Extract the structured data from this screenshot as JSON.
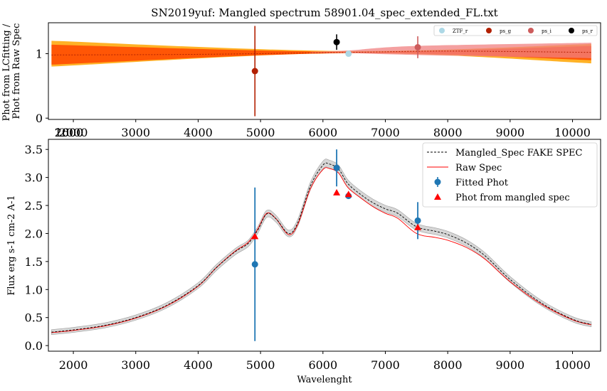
{
  "chart_data": [
    {
      "type": "line",
      "title": "SN2019yuf: Mangled spectrum 58901.04_spec_extended_FL.txt",
      "ylabel": "Phot from LCfitting /\nPhot from Raw Spec",
      "xlabel": "",
      "xlim": [
        1600,
        10450
      ],
      "ylim": [
        -0.02,
        1.48
      ],
      "xticks": [
        2000,
        3000,
        4000,
        5000,
        6000,
        7000,
        8000,
        9000,
        10000
      ],
      "xtick_labels": [
        "2000",
        "3000",
        "4000",
        "5000",
        "6000",
        "7000",
        "8000",
        "9000",
        "10000"
      ],
      "overlap_tick_labels": [
        "1600",
        "2000"
      ],
      "yticks": [
        0,
        1
      ],
      "ytick_labels": [
        "0",
        "1"
      ],
      "grid": false,
      "legend_placement": "top-right",
      "legend": [
        {
          "name": "ZTF_r",
          "color": "#add8e6"
        },
        {
          "name": "ps_g",
          "color": "#b22000"
        },
        {
          "name": "ps_i",
          "color": "#cd5c5c"
        },
        {
          "name": "ps_r",
          "color": "#000000"
        }
      ],
      "bands": [
        {
          "color": "#ffa500",
          "opacity": 0.85,
          "x": [
            1650,
            6400,
            10300
          ],
          "lower": [
            0.8,
            1.01,
            0.85
          ],
          "upper": [
            1.2,
            1.04,
            1.15
          ]
        },
        {
          "color": "#ff4500",
          "opacity": 0.85,
          "x": [
            1650,
            6400,
            10300
          ],
          "lower": [
            0.83,
            1.01,
            0.9
          ],
          "upper": [
            1.14,
            1.03,
            1.12
          ]
        },
        {
          "color": "#f08080",
          "opacity": 0.75,
          "x": [
            5800,
            6400,
            7500,
            10300
          ],
          "lower": [
            1.02,
            1.01,
            0.98,
            0.93
          ],
          "upper": [
            1.03,
            1.05,
            1.12,
            1.17
          ]
        }
      ],
      "ratio_line": {
        "x": [
          1650,
          4000,
          6400,
          8000,
          10300
        ],
        "y": [
          0.98,
          0.99,
          1.02,
          1.04,
          1.02
        ],
        "color": "#b22000"
      },
      "points": [
        {
          "name": "ps_g",
          "x": 4910,
          "y": 0.73,
          "yerr": 0.7,
          "color": "#b22000"
        },
        {
          "name": "ps_r",
          "x": 6220,
          "y": 1.18,
          "yerr": 0.12,
          "color": "#000000"
        },
        {
          "name": "ZTF_r",
          "x": 6410,
          "y": 1.0,
          "yerr": 0.0,
          "color": "#add8e6"
        },
        {
          "name": "ps_i",
          "x": 7520,
          "y": 1.1,
          "yerr": 0.17,
          "color": "#cd5c5c"
        }
      ]
    },
    {
      "type": "line",
      "title": "",
      "xlabel": "Wavelenght",
      "ylabel": "Flux erg s-1 cm-2 A-1",
      "xlim": [
        1600,
        10450
      ],
      "ylim": [
        -0.1,
        3.68
      ],
      "xticks": [
        2000,
        3000,
        4000,
        5000,
        6000,
        7000,
        8000,
        9000,
        10000
      ],
      "xtick_labels": [
        "2000",
        "3000",
        "4000",
        "5000",
        "6000",
        "7000",
        "8000",
        "9000",
        "10000"
      ],
      "yticks": [
        0.0,
        0.5,
        1.0,
        1.5,
        2.0,
        2.5,
        3.0,
        3.5
      ],
      "ytick_labels": [
        "0.0",
        "0.5",
        "1.0",
        "1.5",
        "2.0",
        "2.5",
        "3.0",
        "3.5"
      ],
      "grid": false,
      "legend_placement": "top-right",
      "legend": [
        {
          "name": "Mangled_Spec FAKE SPEC",
          "color": "#000000",
          "style": "dashed"
        },
        {
          "name": "Raw Spec",
          "color": "#ff0000",
          "style": "line"
        },
        {
          "name": "Fitted Phot",
          "color": "#1f77b4",
          "style": "errorbar"
        },
        {
          "name": "Phot from mangled spec",
          "color": "#ff0000",
          "style": "triangle"
        }
      ],
      "mangled_spec": {
        "x": [
          1650,
          2000,
          2500,
          3000,
          3500,
          4000,
          4300,
          4600,
          4800,
          4950,
          5100,
          5250,
          5450,
          5600,
          5800,
          6000,
          6100,
          6250,
          6400,
          6600,
          6800,
          7000,
          7200,
          7500,
          7800,
          8000,
          8300,
          8600,
          9000,
          9500,
          10000,
          10300
        ],
        "y": [
          0.24,
          0.28,
          0.36,
          0.5,
          0.72,
          1.07,
          1.4,
          1.68,
          1.82,
          2.05,
          2.35,
          2.26,
          2.0,
          2.2,
          2.85,
          3.22,
          3.24,
          3.15,
          2.89,
          2.7,
          2.55,
          2.44,
          2.36,
          2.12,
          2.04,
          1.98,
          1.83,
          1.6,
          1.18,
          0.76,
          0.47,
          0.38
        ],
        "band": 0.07
      },
      "raw_spec": {
        "x": [
          1650,
          2000,
          2500,
          3000,
          3500,
          4000,
          4300,
          4600,
          4800,
          4950,
          5100,
          5250,
          5450,
          5600,
          5800,
          6000,
          6100,
          6250,
          6400,
          6600,
          6800,
          7000,
          7200,
          7500,
          7800,
          8000,
          8300,
          8600,
          9000,
          9500,
          10000,
          10300
        ],
        "y": [
          0.23,
          0.27,
          0.35,
          0.49,
          0.71,
          1.06,
          1.4,
          1.69,
          1.84,
          2.07,
          2.36,
          2.26,
          1.98,
          2.17,
          2.8,
          3.14,
          3.16,
          3.08,
          2.82,
          2.64,
          2.48,
          2.36,
          2.27,
          2.0,
          1.93,
          1.88,
          1.75,
          1.54,
          1.14,
          0.74,
          0.46,
          0.37
        ]
      },
      "fitted_phot": [
        {
          "x": 4910,
          "y": 1.45,
          "yerr": 1.37
        },
        {
          "x": 6220,
          "y": 3.17,
          "yerr": 0.33
        },
        {
          "x": 6410,
          "y": 2.67,
          "yerr": 0.05
        },
        {
          "x": 7520,
          "y": 2.23,
          "yerr": 0.33
        }
      ],
      "mangled_phot": [
        {
          "x": 4910,
          "y": 1.95
        },
        {
          "x": 6220,
          "y": 2.73
        },
        {
          "x": 6410,
          "y": 2.7
        },
        {
          "x": 7520,
          "y": 2.11
        }
      ]
    }
  ]
}
